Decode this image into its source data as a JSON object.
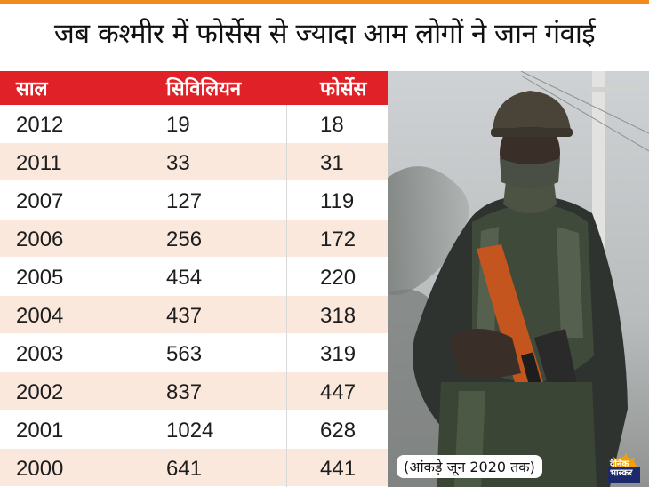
{
  "title": "जब कश्मीर में फोर्सेस से ज्यादा आम लोगों ने जान गंवाई",
  "note": "(आंकड़े जून 2020 तक)",
  "logo_text": [
    "दैनिक",
    "भास्कर"
  ],
  "colors": {
    "accent": "#e02127",
    "row_alt": "#fbe8dc",
    "top_rule": "#f28a1c"
  },
  "chart_data": {
    "type": "table",
    "columns": [
      "साल",
      "सिविलियन",
      "फोर्सेस"
    ],
    "rows": [
      [
        "2012",
        "19",
        "18"
      ],
      [
        "2011",
        "33",
        "31"
      ],
      [
        "2007",
        "127",
        "119"
      ],
      [
        "2006",
        "256",
        "172"
      ],
      [
        "2005",
        "454",
        "220"
      ],
      [
        "2004",
        "437",
        "318"
      ],
      [
        "2003",
        "563",
        "319"
      ],
      [
        "2002",
        "837",
        "447"
      ],
      [
        "2001",
        "1024",
        "628"
      ],
      [
        "2000",
        "641",
        "441"
      ]
    ]
  }
}
